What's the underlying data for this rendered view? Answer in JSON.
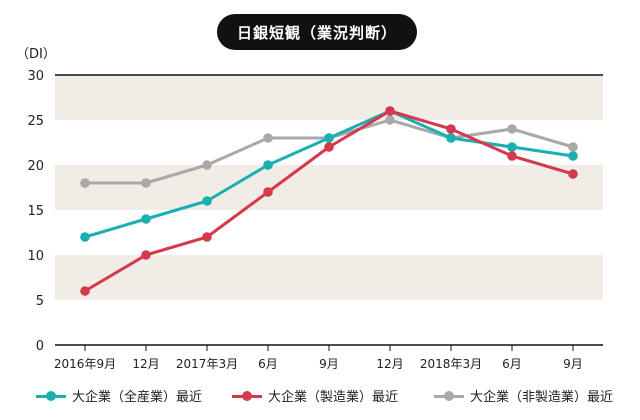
{
  "title": "日銀短観（業況判断）",
  "unit": "（DI）",
  "chart_data": {
    "type": "line",
    "title": "日銀短観（業況判断）",
    "ylabel": "（DI）",
    "xlabel": "",
    "ylim": [
      0,
      30
    ],
    "yticks": [
      0,
      5,
      10,
      15,
      20,
      25,
      30
    ],
    "grid": "horizontal bands",
    "legend_position": "bottom",
    "categories": [
      "2016年9月",
      "12月",
      "2017年3月",
      "6月",
      "9月",
      "12月",
      "2018年3月",
      "6月",
      "9月"
    ],
    "series": [
      {
        "name": "大企業（全産業）最近",
        "color": "#1aafb0",
        "values": [
          12,
          14,
          16,
          20,
          23,
          26,
          23,
          22,
          21
        ]
      },
      {
        "name": "大企業（製造業）最近",
        "color": "#d43a4b",
        "values": [
          6,
          10,
          12,
          17,
          22,
          26,
          24,
          21,
          19
        ]
      },
      {
        "name": "大企業（非製造業）最近",
        "color": "#a9a9a9",
        "values": [
          18,
          18,
          20,
          23,
          23,
          25,
          23,
          24,
          22
        ]
      }
    ]
  },
  "colors": {
    "band": "#f2ece6",
    "axis": "#111111"
  }
}
